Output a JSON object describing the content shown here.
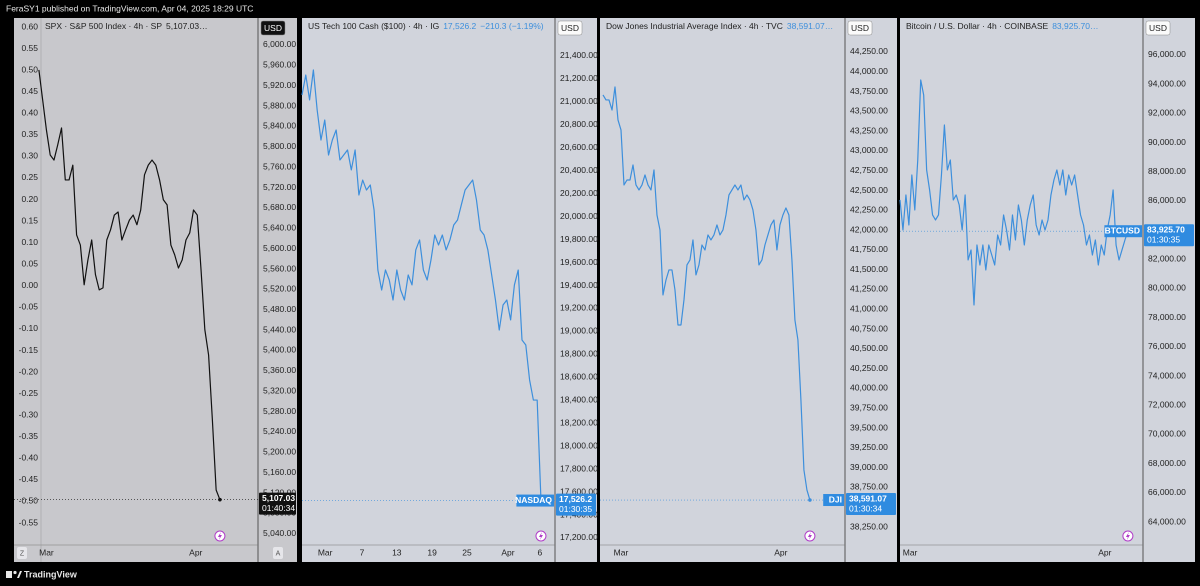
{
  "header": "FeraSY1 published on TradingView.com, Apr 04, 2025 18:29 UTC",
  "footer": "TradingView",
  "chart_data": [
    {
      "type": "line",
      "title": "SPX · S&P 500 Index · 4h · SP",
      "legend_value": "5,107.03…",
      "currency": "USD",
      "background": "#c8c8cc",
      "color": "#111111",
      "tag_color": "#111111",
      "price_tag": "5,107.03",
      "countdown": "01:40:34",
      "axis_buttons": [
        "Z",
        "A"
      ],
      "values": [
        5951,
        5892,
        5833,
        5784,
        5774,
        5804,
        5837,
        5735,
        5735,
        5764,
        5627,
        5607,
        5529,
        5578,
        5617,
        5549,
        5519,
        5523,
        5617,
        5637,
        5666,
        5672,
        5617,
        5637,
        5656,
        5666,
        5647,
        5676,
        5745,
        5764,
        5774,
        5764,
        5735,
        5696,
        5686,
        5607,
        5588,
        5562,
        5578,
        5617,
        5631,
        5676,
        5666,
        5558,
        5441,
        5391,
        5264,
        5126,
        5107.03
      ],
      "xlim": [
        -6.6,
        58.1
      ],
      "xticks": [
        {
          "value": 2,
          "label": "Mar"
        },
        {
          "value": 41.6,
          "label": "Apr"
        }
      ],
      "ylim": [
        5018,
        6053
      ],
      "yticks": [
        {
          "value": 6000,
          "label": "6,000.00"
        },
        {
          "value": 5960,
          "label": "5,960.00"
        },
        {
          "value": 5920,
          "label": "5,920.00"
        },
        {
          "value": 5880,
          "label": "5,880.00"
        },
        {
          "value": 5840,
          "label": "5,840.00"
        },
        {
          "value": 5800,
          "label": "5,800.00"
        },
        {
          "value": 5760,
          "label": "5,760.00"
        },
        {
          "value": 5720,
          "label": "5,720.00"
        },
        {
          "value": 5680,
          "label": "5,680.00"
        },
        {
          "value": 5640,
          "label": "5,640.00"
        },
        {
          "value": 5600,
          "label": "5,600.00"
        },
        {
          "value": 5560,
          "label": "5,560.00"
        },
        {
          "value": 5520,
          "label": "5,520.00"
        },
        {
          "value": 5480,
          "label": "5,480.00"
        },
        {
          "value": 5440,
          "label": "5,440.00"
        },
        {
          "value": 5400,
          "label": "5,400.00"
        },
        {
          "value": 5360,
          "label": "5,360.00"
        },
        {
          "value": 5320,
          "label": "5,320.00"
        },
        {
          "value": 5280,
          "label": "5,280.00"
        },
        {
          "value": 5240,
          "label": "5,240.00"
        },
        {
          "value": 5200,
          "label": "5,200.00"
        },
        {
          "value": 5160,
          "label": "5,160.00"
        },
        {
          "value": 5120,
          "label": "5,120.00"
        },
        {
          "value": 5080,
          "label": "5,080.00"
        },
        {
          "value": 5040,
          "label": "5,040.00"
        }
      ],
      "y2lim": [
        -0.601,
        0.621
      ],
      "y2ticks": [
        {
          "value": 0.6,
          "label": "0.60"
        },
        {
          "value": 0.55,
          "label": "0.55"
        },
        {
          "value": 0.5,
          "label": "0.50"
        },
        {
          "value": 0.45,
          "label": "0.45"
        },
        {
          "value": 0.4,
          "label": "0.40"
        },
        {
          "value": 0.35,
          "label": "0.35"
        },
        {
          "value": 0.3,
          "label": "0.30"
        },
        {
          "value": 0.25,
          "label": "0.25"
        },
        {
          "value": 0.2,
          "label": "0.20"
        },
        {
          "value": 0.15,
          "label": "0.15"
        },
        {
          "value": 0.1,
          "label": "0.10"
        },
        {
          "value": 0.05,
          "label": "0.05"
        },
        {
          "value": 0,
          "label": "0.00"
        },
        {
          "value": -0.05,
          "label": "-0.05"
        },
        {
          "value": -0.1,
          "label": "-0.10"
        },
        {
          "value": -0.15,
          "label": "-0.15"
        },
        {
          "value": -0.2,
          "label": "-0.20"
        },
        {
          "value": -0.25,
          "label": "-0.25"
        },
        {
          "value": -0.3,
          "label": "-0.30"
        },
        {
          "value": -0.35,
          "label": "-0.35"
        },
        {
          "value": -0.4,
          "label": "-0.40"
        },
        {
          "value": -0.45,
          "label": "-0.45"
        },
        {
          "value": -0.5,
          "label": "-0.50"
        },
        {
          "value": -0.55,
          "label": "-0.55"
        }
      ]
    },
    {
      "type": "line",
      "title": "US Tech 100 Cash ($100) · 4h · IG",
      "legend_value": "17,526.2",
      "change": "−210.3 (−1.19%)",
      "currency": "USD",
      "background": "#d1d4dc",
      "color": "#3d8fdc",
      "tag_color": "#2f8be0",
      "symbol": "NASDAQ",
      "price_tag": "17,526.2",
      "countdown": "01:30:35",
      "values": [
        21060,
        21234,
        21017,
        21278,
        20929,
        20668,
        20842,
        20537,
        20668,
        20755,
        20494,
        20537,
        20581,
        20407,
        20581,
        20189,
        20319,
        20232,
        20276,
        20058,
        19535,
        19361,
        19535,
        19448,
        19274,
        19535,
        19361,
        19274,
        19492,
        19405,
        19710,
        19797,
        19535,
        19448,
        19622,
        19840,
        19753,
        19840,
        19710,
        19797,
        19927,
        19971,
        20102,
        20232,
        20276,
        20319,
        20145,
        19884,
        19840,
        19710,
        19492,
        19274,
        19012,
        19230,
        19274,
        19100,
        19405,
        19535,
        18925,
        18882,
        18577,
        18402,
        18402,
        17526.2
      ],
      "xlim": [
        0,
        66.7
      ],
      "xticks": [
        {
          "value": 6.1,
          "label": "Mar"
        },
        {
          "value": 15.8,
          "label": "7"
        },
        {
          "value": 25,
          "label": "13"
        },
        {
          "value": 34.3,
          "label": "19"
        },
        {
          "value": 43.5,
          "label": "25"
        },
        {
          "value": 54.3,
          "label": "Apr"
        },
        {
          "value": 62.7,
          "label": "6"
        }
      ],
      "ylim": [
        17139,
        21731
      ],
      "yticks": [
        {
          "value": 21400,
          "label": "21,400.00"
        },
        {
          "value": 21200,
          "label": "21,200.00"
        },
        {
          "value": 21000,
          "label": "21,000.00"
        },
        {
          "value": 20800,
          "label": "20,800.00"
        },
        {
          "value": 20600,
          "label": "20,600.00"
        },
        {
          "value": 20400,
          "label": "20,400.00"
        },
        {
          "value": 20200,
          "label": "20,200.00"
        },
        {
          "value": 20000,
          "label": "20,000.00"
        },
        {
          "value": 19800,
          "label": "19,800.00"
        },
        {
          "value": 19600,
          "label": "19,600.00"
        },
        {
          "value": 19400,
          "label": "19,400.00"
        },
        {
          "value": 19200,
          "label": "19,200.00"
        },
        {
          "value": 19000,
          "label": "19,000.00"
        },
        {
          "value": 18800,
          "label": "18,800.00"
        },
        {
          "value": 18600,
          "label": "18,600.00"
        },
        {
          "value": 18400,
          "label": "18,400.00"
        },
        {
          "value": 18200,
          "label": "18,200.00"
        },
        {
          "value": 18000,
          "label": "18,000.00"
        },
        {
          "value": 17800,
          "label": "17,800.00"
        },
        {
          "value": 17600,
          "label": "17,600.00"
        },
        {
          "value": 17400,
          "label": "17,400.00"
        },
        {
          "value": 17200,
          "label": "17,200.00"
        }
      ]
    },
    {
      "type": "line",
      "title": "Dow Jones Industrial Average Index · 4h · TVC",
      "legend_value": "38,591.07…",
      "currency": "USD",
      "background": "#d1d4dc",
      "color": "#3d8fdc",
      "tag_color": "#2f8be0",
      "symbol": "DJI",
      "price_tag": "38,591.07",
      "countdown": "01:30:34",
      "values": [
        43707,
        43644,
        43644,
        43517,
        43808,
        43391,
        43265,
        42570,
        42633,
        42633,
        42823,
        42570,
        42507,
        42570,
        42697,
        42570,
        42507,
        42760,
        42191,
        42002,
        41181,
        41370,
        41497,
        41497,
        41244,
        40802,
        40802,
        41118,
        41560,
        41623,
        41876,
        41434,
        41560,
        41812,
        41749,
        41939,
        41876,
        41939,
        42065,
        41939,
        42002,
        42191,
        42444,
        42507,
        42570,
        42507,
        42570,
        42381,
        42444,
        42381,
        42255,
        42002,
        41560,
        41623,
        41812,
        41939,
        42065,
        42128,
        41749,
        42065,
        42191,
        42280,
        42191,
        41623,
        40865,
        40613,
        39855,
        38971,
        38718,
        38591.07
      ],
      "xlim": [
        -1,
        80.7
      ],
      "xticks": [
        {
          "value": 6,
          "label": "Mar"
        },
        {
          "value": 59.3,
          "label": "Apr"
        }
      ],
      "ylim": [
        38023,
        44679
      ],
      "yticks": [
        {
          "value": 44250,
          "label": "44,250.00"
        },
        {
          "value": 44000,
          "label": "44,000.00"
        },
        {
          "value": 43750,
          "label": "43,750.00"
        },
        {
          "value": 43500,
          "label": "43,500.00"
        },
        {
          "value": 43250,
          "label": "43,250.00"
        },
        {
          "value": 43000,
          "label": "43,000.00"
        },
        {
          "value": 42750,
          "label": "42,750.00"
        },
        {
          "value": 42500,
          "label": "42,500.00"
        },
        {
          "value": 42250,
          "label": "42,250.00"
        },
        {
          "value": 42000,
          "label": "42,000.00"
        },
        {
          "value": 41750,
          "label": "41,750.00"
        },
        {
          "value": 41500,
          "label": "41,500.00"
        },
        {
          "value": 41250,
          "label": "41,250.00"
        },
        {
          "value": 41000,
          "label": "41,000.00"
        },
        {
          "value": 40750,
          "label": "40,750.00"
        },
        {
          "value": 40500,
          "label": "40,500.00"
        },
        {
          "value": 40250,
          "label": "40,250.00"
        },
        {
          "value": 40000,
          "label": "40,000.00"
        },
        {
          "value": 39750,
          "label": "39,750.00"
        },
        {
          "value": 39500,
          "label": "39,500.00"
        },
        {
          "value": 39250,
          "label": "39,250.00"
        },
        {
          "value": 39000,
          "label": "39,000.00"
        },
        {
          "value": 38750,
          "label": "38,750.00"
        },
        {
          "value": 38500,
          "label": "38,500.00"
        },
        {
          "value": 38250,
          "label": "38,250.00"
        }
      ]
    },
    {
      "type": "line",
      "title": "Bitcoin / U.S. Dollar · 4h · COINBASE",
      "legend_value": "83,925.70…",
      "currency": "USD",
      "background": "#d1d4dc",
      "color": "#3d8fdc",
      "tag_color": "#2f8be0",
      "symbol": "BTCUSD",
      "price_tag": "83,925.70",
      "countdown": "01:30:35",
      "values": [
        86065,
        84009,
        86407,
        84352,
        87778,
        85380,
        88805,
        94287,
        93259,
        88120,
        86750,
        85037,
        84694,
        85037,
        87778,
        91204,
        88120,
        88805,
        86065,
        86407,
        85722,
        84009,
        86407,
        81953,
        82639,
        78870,
        82981,
        81611,
        82981,
        81268,
        82981,
        82296,
        81611,
        83666,
        82981,
        85037,
        84009,
        82639,
        85037,
        83324,
        85722,
        84694,
        82981,
        84694,
        85722,
        86407,
        84352,
        83666,
        84694,
        84009,
        84694,
        86407,
        87435,
        88120,
        87092,
        88120,
        86407,
        87778,
        87092,
        87778,
        86407,
        85037,
        84352,
        82981,
        83666,
        82296,
        83324,
        81611,
        82981,
        82296,
        84009,
        85037,
        86750,
        82981,
        81953,
        82639,
        83324,
        83925.7
      ],
      "xlim": [
        0,
        82.1
      ],
      "xticks": [
        {
          "value": 3.4,
          "label": "Mar"
        },
        {
          "value": 69.2,
          "label": "Apr"
        }
      ],
      "ylim": [
        62424,
        98535
      ],
      "yticks": [
        {
          "value": 96000,
          "label": "96,000.00"
        },
        {
          "value": 94000,
          "label": "94,000.00"
        },
        {
          "value": 92000,
          "label": "92,000.00"
        },
        {
          "value": 90000,
          "label": "90,000.00"
        },
        {
          "value": 88000,
          "label": "88,000.00"
        },
        {
          "value": 86000,
          "label": "86,000.00"
        },
        {
          "value": 84000,
          "label": "84,000.00"
        },
        {
          "value": 82000,
          "label": "82,000.00"
        },
        {
          "value": 80000,
          "label": "80,000.00"
        },
        {
          "value": 78000,
          "label": "78,000.00"
        },
        {
          "value": 76000,
          "label": "76,000.00"
        },
        {
          "value": 74000,
          "label": "74,000.00"
        },
        {
          "value": 72000,
          "label": "72,000.00"
        },
        {
          "value": 70000,
          "label": "70,000.00"
        },
        {
          "value": 68000,
          "label": "68,000.00"
        },
        {
          "value": 66000,
          "label": "66,000.00"
        },
        {
          "value": 64000,
          "label": "64,000.00"
        }
      ]
    }
  ]
}
